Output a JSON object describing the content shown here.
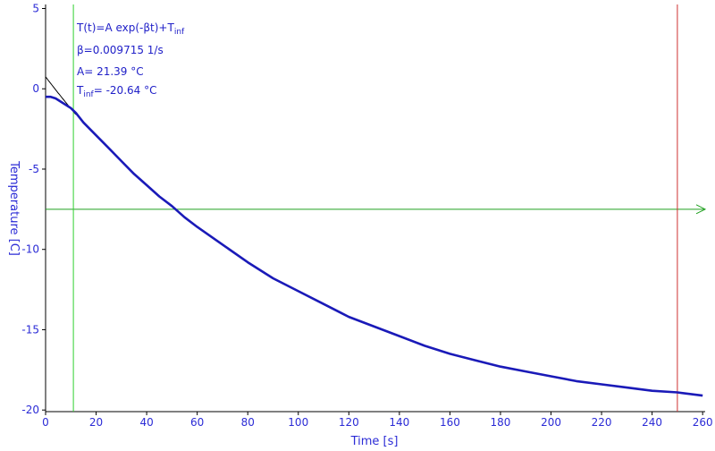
{
  "chart_data": {
    "type": "line",
    "title": "",
    "xlabel": "Time [s]",
    "ylabel": "Temperature [C]",
    "xlim": [
      0,
      261
    ],
    "ylim": [
      -20.1,
      5.25
    ],
    "xticks": [
      0,
      20,
      40,
      60,
      80,
      100,
      120,
      140,
      160,
      180,
      200,
      220,
      240,
      260
    ],
    "yticks": [
      5,
      0,
      -5,
      -10,
      -15,
      -20
    ],
    "grid": false,
    "legend": "none",
    "fit": {
      "model_label": "T(t)=A exp(-βt)+T",
      "model_label_sub": "inf",
      "beta_label": "β=0.009715 1/s",
      "A_label": "A= 21.39 °C",
      "tinf_label_main": "T",
      "tinf_label_sub": "inf",
      "tinf_label_value": "= -20.64 °C",
      "beta": 0.009715,
      "A": 21.39,
      "T_inf": -20.64,
      "t_start": 0,
      "t_end": 12
    },
    "series": [
      {
        "x": [
          0,
          2,
          4,
          6,
          8,
          10,
          12,
          15,
          20,
          25,
          30,
          35,
          40,
          45,
          50,
          55,
          60,
          70,
          80,
          90,
          100,
          110,
          120,
          130,
          140,
          150,
          160,
          170,
          180,
          190,
          200,
          210,
          220,
          230,
          240,
          250,
          260
        ],
        "y": [
          -0.5,
          -0.5,
          -0.6,
          -0.8,
          -1.0,
          -1.2,
          -1.5,
          -2.1,
          -2.9,
          -3.7,
          -4.5,
          -5.3,
          -6.0,
          -6.7,
          -7.3,
          -8.0,
          -8.6,
          -9.7,
          -10.8,
          -11.8,
          -12.6,
          -13.4,
          -14.2,
          -14.8,
          -15.4,
          -16.0,
          -16.5,
          -16.9,
          -17.3,
          -17.6,
          -17.9,
          -18.2,
          -18.4,
          -18.6,
          -18.8,
          -18.9,
          -19.1
        ],
        "color": "#1a1ab8"
      }
    ],
    "cursors": {
      "vertical_green_x": 11,
      "vertical_red_x": 250,
      "horizontal_green_y": -7.5
    },
    "colors": {
      "data": "#1a1ab8",
      "fit": "#000000",
      "cursor_green": "#20a020",
      "cursor_vgreen": "#30d030",
      "cursor_red": "#d03030",
      "axis_text": "#2b2bd6"
    }
  }
}
